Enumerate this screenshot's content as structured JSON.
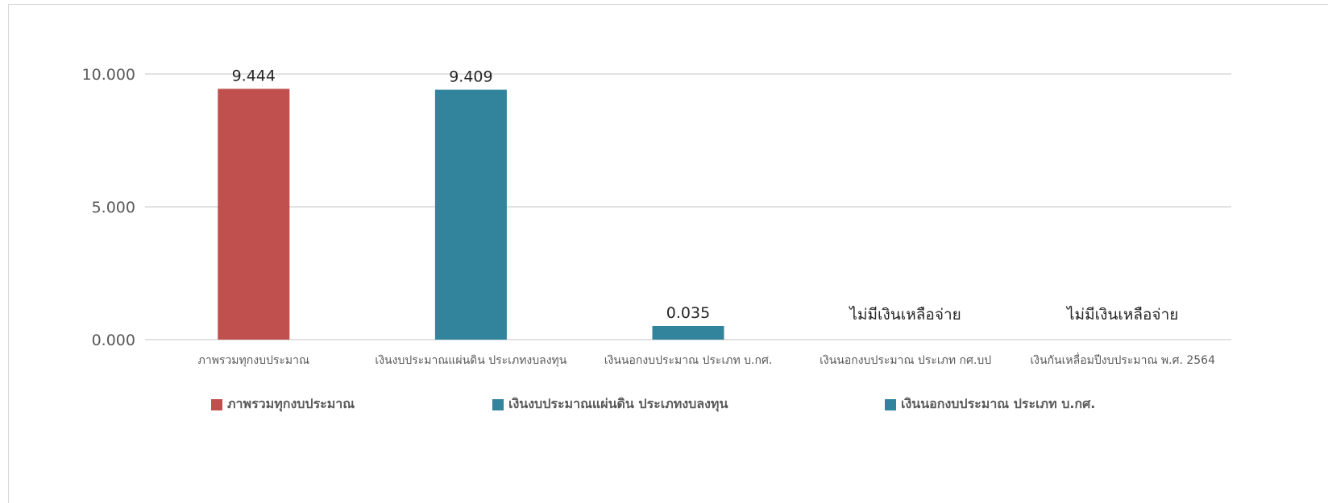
{
  "chart_data": {
    "type": "bar",
    "categories": [
      "ภาพรวมทุกงบประมาณ",
      "เงินงบประมาณแผ่นดิน ประเภทงบลงทุน",
      "เงินนอกงบประมาณ ประเภท บ.กศ.",
      "เงินนอกงบประมาณ ประเภท กศ.บป",
      "เงินกันเหลื่อมปีงบประมาณ พ.ศ. 2564"
    ],
    "values": [
      9.444,
      9.409,
      0.035,
      null,
      null
    ],
    "data_labels": [
      "9.444",
      "9.409",
      "0.035",
      "ไม่มีเงินเหลือจ่าย",
      "ไม่มีเงินเหลือจ่าย"
    ],
    "bar_colors": [
      "#c0504d",
      "#31849b",
      "#31849b",
      null,
      null
    ],
    "ylim": [
      0,
      10
    ],
    "y_ticks": [
      {
        "value": 0,
        "label": "0.000"
      },
      {
        "value": 5,
        "label": "5.000"
      },
      {
        "value": 10,
        "label": "10.000"
      }
    ],
    "grid": true,
    "legend": {
      "placement": "bottom",
      "items": [
        {
          "label": "ภาพรวมทุกงบประมาณ",
          "color": "#c0504d"
        },
        {
          "label": "เงินงบประมาณแผ่นดิน ประเภทงบลงทุน",
          "color": "#31849b"
        },
        {
          "label": "เงินนอกงบประมาณ ประเภท บ.กศ.",
          "color": "#31849b"
        }
      ]
    }
  }
}
